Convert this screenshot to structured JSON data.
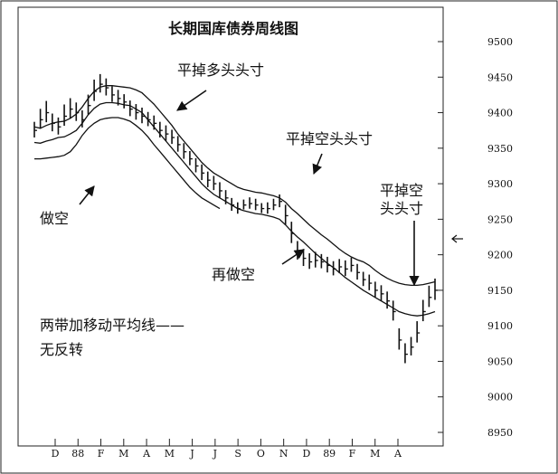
{
  "chart_data": {
    "type": "line",
    "chart_style": "bar (high-low-close) price chart with two moving average envelope lines",
    "title": "长期国库债券周线图",
    "x_tick_labels": [
      "D",
      "88",
      "F",
      "M",
      "A",
      "M",
      "J",
      "J",
      "S",
      "O",
      "N",
      "D",
      "89",
      "F",
      "M",
      "A"
    ],
    "y_axis": {
      "position": "right",
      "ylim": [
        8950,
        9500
      ],
      "tick_labels": [
        "9500",
        "9450",
        "9400",
        "9350",
        "9300",
        "9250",
        "9200",
        "9150",
        "9100",
        "9050",
        "9000",
        "8950"
      ]
    },
    "annotations": [
      "平掉多头头寸",
      "平掉空头头寸",
      "平掉空",
      "头头寸",
      "做空",
      "再做空",
      "两带加移动平均线——",
      "无反转"
    ],
    "weekly_closes": [
      9375,
      9390,
      9400,
      9385,
      9380,
      9395,
      9405,
      9400,
      9390,
      9410,
      9430,
      9440,
      9435,
      9425,
      9420,
      9415,
      9405,
      9400,
      9395,
      9390,
      9385,
      9375,
      9370,
      9365,
      9355,
      9345,
      9335,
      9325,
      9315,
      9305,
      9300,
      9290,
      9280,
      9270,
      9265,
      9270,
      9272,
      9270,
      9265,
      9265,
      9270,
      9275,
      9255,
      9230,
      9205,
      9195,
      9190,
      9192,
      9190,
      9185,
      9180,
      9183,
      9180,
      9185,
      9175,
      9165,
      9160,
      9150,
      9145,
      9135,
      9120,
      9080,
      9060,
      9070,
      9090,
      9120,
      9140,
      9150
    ],
    "weekly_ranges": [
      22,
      28,
      30,
      25,
      24,
      30,
      28,
      26,
      24,
      28,
      30,
      26,
      24,
      22,
      22,
      20,
      22,
      22,
      22,
      20,
      20,
      22,
      22,
      20,
      22,
      22,
      20,
      20,
      22,
      22,
      20,
      22,
      20,
      18,
      16,
      14,
      16,
      16,
      14,
      16,
      16,
      18,
      28,
      30,
      26,
      24,
      22,
      22,
      20,
      22,
      20,
      20,
      22,
      20,
      22,
      20,
      22,
      22,
      22,
      24,
      28,
      30,
      28,
      26,
      30,
      30,
      30,
      30
    ],
    "series": [
      {
        "values": [
          9380,
          9378,
          9382,
          9385,
          9387,
          9388,
          9392,
          9398,
          9408,
          9420,
          9430,
          9436,
          9438,
          9438,
          9437,
          9436,
          9435,
          9432,
          9428,
          9420,
          9412,
          9402,
          9392,
          9382,
          9370,
          9360,
          9350,
          9340,
          9330,
          9322,
          9315,
          9310,
          9305,
          9300,
          9295,
          9292,
          9290,
          9288,
          9287,
          9285,
          9283,
          9280,
          9274,
          9265,
          9258,
          9250,
          9242,
          9235,
          9228,
          9222,
          9215,
          9208,
          9202,
          9197,
          9193,
          9190,
          9185,
          9178,
          9172,
          9167,
          9163,
          9160,
          9158,
          9157,
          9157,
          9158,
          9160,
          9162
        ]
      },
      {
        "values": [
          9358,
          9357,
          9360,
          9362,
          9365,
          9366,
          9370,
          9375,
          9385,
          9397,
          9406,
          9412,
          9414,
          9414,
          9413,
          9411,
          9410,
          9405,
          9400,
          9390,
          9380,
          9370,
          9360,
          9350,
          9340,
          9330,
          9320,
          9310,
          9300,
          9292,
          9285,
          9280,
          9275,
          9270,
          9265,
          9262,
          9260,
          9258,
          9257,
          9255,
          9253,
          9250,
          9242,
          9233,
          9225,
          9218,
          9210,
          9202,
          9195,
          9188,
          9182,
          9175,
          9168,
          9162,
          9156,
          9150,
          9145,
          9140,
          9135,
          9130,
          9125,
          9120,
          9117,
          9115,
          9114,
          9115,
          9117,
          9120
        ]
      },
      {
        "values": [
          9335,
          9335,
          9336,
          9337,
          9338,
          9340,
          9345,
          9355,
          9368,
          9378,
          9385,
          9390,
          9392,
          9393,
          9393,
          9391,
          9388,
          9382,
          9375,
          9366,
          9355,
          9345,
          9335,
          9325,
          9315,
          9305,
          9295,
          9287,
          9280,
          9275,
          9270,
          9265
        ]
      }
    ]
  }
}
